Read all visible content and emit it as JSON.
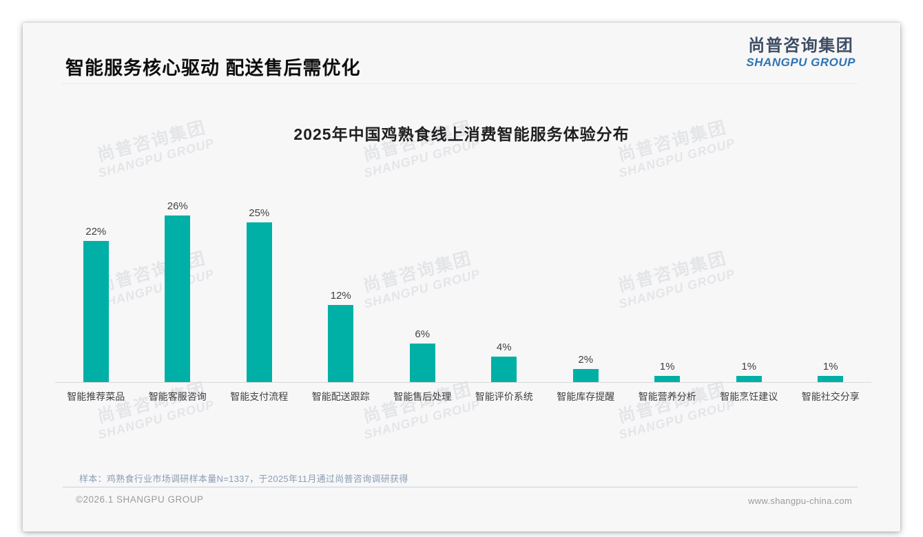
{
  "page": {
    "title": "智能服务核心驱动 配送售后需优化",
    "logo": {
      "cn": "尚普咨询集团",
      "en": "SHANGPU GROUP"
    },
    "watermark": {
      "cn": "尚普咨询集团",
      "en": "SHANGPU GROUP"
    },
    "footer": {
      "note": "样本：鸡熟食行业市场调研样本量N=1337，于2025年11月通过尚普咨询调研获得",
      "copyright": "©2026.1 SHANGPU GROUP",
      "website": "www.shangpu-china.com"
    }
  },
  "chart_data": {
    "type": "bar",
    "title": "2025年中国鸡熟食线上消费智能服务体验分布",
    "categories": [
      "智能推荐菜品",
      "智能客服咨询",
      "智能支付流程",
      "智能配送跟踪",
      "智能售后处理",
      "智能评价系统",
      "智能库存提醒",
      "智能营养分析",
      "智能烹饪建议",
      "智能社交分享"
    ],
    "values": [
      22,
      26,
      25,
      12,
      6,
      4,
      2,
      1,
      1,
      1
    ],
    "unit": "%",
    "title_color": "#1f1f1f",
    "bar_color": "#00b0a6",
    "label_color": "#404040",
    "ylim": [
      0,
      28
    ],
    "grid": false,
    "legend": false,
    "data_labels": true
  }
}
